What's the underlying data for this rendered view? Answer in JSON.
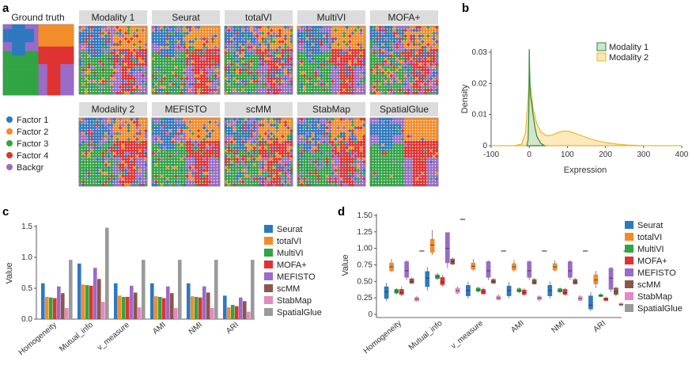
{
  "panel_labels": [
    "a",
    "b",
    "c",
    "d"
  ],
  "colors": {
    "factor1": "#2e78c0",
    "factor2": "#f28c28",
    "factor3": "#31a443",
    "factor4": "#e03232",
    "backgr": "#9a6bc8",
    "tile_header": "#dcdcdc",
    "modality1_fill": "#cfe3cf",
    "modality1_edge": "#2e8b3c",
    "modality2_fill": "#fbe6b0",
    "modality2_edge": "#e6b830"
  },
  "spatial_maps": {
    "ground_truth_title": "Ground truth",
    "legend": [
      "Factor 1",
      "Factor 2",
      "Factor 3",
      "Factor 4",
      "Backgr"
    ],
    "row1": [
      "Modality 1",
      "Seurat",
      "totalVI",
      "MultiVI",
      "MOFA+"
    ],
    "row2": [
      "Modality 2",
      "MEFISTO",
      "scMM",
      "StabMap",
      "SpatialGlue"
    ]
  },
  "chart_data": [
    {
      "id": "b",
      "type": "area",
      "xlabel": "Expression",
      "ylabel": "Density",
      "xlim": [
        -100,
        400
      ],
      "ylim": [
        0,
        0.03
      ],
      "xticks": [
        -100,
        0,
        100,
        200,
        300,
        400
      ],
      "yticks": [
        0,
        0.01,
        0.02,
        0.03
      ],
      "legend": [
        "Modality 1",
        "Modality 2"
      ],
      "series": [
        {
          "name": "Modality 1",
          "x": [
            -6,
            -3,
            -1,
            0,
            1,
            3,
            6,
            10,
            15,
            20,
            30,
            40
          ],
          "y": [
            0,
            0.002,
            0.012,
            0.031,
            0.024,
            0.016,
            0.014,
            0.01,
            0.006,
            0.003,
            0.0008,
            0
          ]
        },
        {
          "name": "Modality 2",
          "x": [
            -100,
            -40,
            -20,
            -10,
            -5,
            0,
            5,
            10,
            20,
            30,
            45,
            60,
            75,
            90,
            105,
            120,
            140,
            160,
            180,
            200,
            230,
            260,
            300,
            350,
            400
          ],
          "y": [
            0,
            0,
            0.0005,
            0.004,
            0.012,
            0.0205,
            0.018,
            0.012,
            0.007,
            0.0045,
            0.0032,
            0.0034,
            0.0042,
            0.0047,
            0.0046,
            0.004,
            0.0031,
            0.0022,
            0.0015,
            0.001,
            0.0005,
            0.0002,
            5e-05,
            0,
            0
          ]
        }
      ]
    },
    {
      "id": "c",
      "type": "bar",
      "ylabel": "Value",
      "ylim": [
        0,
        1.5
      ],
      "yticks": [
        0,
        0.5,
        1.0,
        1.5
      ],
      "categories": [
        "Homogeneity",
        "Mutual_info",
        "v_measure",
        "AMI",
        "NMI",
        "ARI"
      ],
      "series": [
        {
          "name": "Seurat",
          "values": [
            0.58,
            0.9,
            0.58,
            0.58,
            0.58,
            0.38
          ]
        },
        {
          "name": "totalVI",
          "values": [
            0.36,
            0.56,
            0.38,
            0.37,
            0.37,
            0.19
          ]
        },
        {
          "name": "MultiVI",
          "values": [
            0.35,
            0.55,
            0.36,
            0.36,
            0.36,
            0.23
          ]
        },
        {
          "name": "MOFA+",
          "values": [
            0.34,
            0.54,
            0.36,
            0.34,
            0.35,
            0.21
          ]
        },
        {
          "name": "MEFISTO",
          "values": [
            0.53,
            0.83,
            0.54,
            0.53,
            0.53,
            0.35
          ]
        },
        {
          "name": "scMM",
          "values": [
            0.42,
            0.65,
            0.43,
            0.42,
            0.43,
            0.29
          ]
        },
        {
          "name": "StabMap",
          "values": [
            0.18,
            0.28,
            0.19,
            0.18,
            0.18,
            0.12
          ]
        },
        {
          "name": "SpatialGlue",
          "values": [
            0.96,
            1.48,
            0.96,
            0.96,
            0.96,
            0.96
          ]
        }
      ]
    },
    {
      "id": "d",
      "type": "box",
      "ylabel": "Value",
      "ylim": [
        0,
        1.5
      ],
      "yticks": [
        "0",
        "0.25",
        "0.50",
        "0.75",
        "1.00",
        "1.25",
        "1.50"
      ],
      "categories": [
        "Homogeneity",
        "Mutual_info",
        "v_measure",
        "AMI",
        "NMI",
        "ARI"
      ],
      "series": [
        {
          "name": "Seurat",
          "boxes": [
            [
              0.2,
              0.24,
              0.34,
              0.42,
              0.48
            ],
            [
              0.36,
              0.42,
              0.55,
              0.65,
              0.72
            ],
            [
              0.24,
              0.28,
              0.36,
              0.44,
              0.5
            ],
            [
              0.24,
              0.28,
              0.36,
              0.43,
              0.49
            ],
            [
              0.24,
              0.28,
              0.36,
              0.44,
              0.5
            ],
            [
              0.05,
              0.08,
              0.14,
              0.28,
              0.34
            ]
          ]
        },
        {
          "name": "totalVI",
          "boxes": [
            [
              0.64,
              0.66,
              0.72,
              0.78,
              0.84
            ],
            [
              0.9,
              0.94,
              1.05,
              1.14,
              1.28
            ],
            [
              0.66,
              0.68,
              0.73,
              0.78,
              0.84
            ],
            [
              0.65,
              0.67,
              0.72,
              0.77,
              0.82
            ],
            [
              0.65,
              0.67,
              0.72,
              0.77,
              0.82
            ],
            [
              0.4,
              0.46,
              0.52,
              0.6,
              0.66
            ]
          ]
        },
        {
          "name": "MultiVI",
          "boxes": [
            [
              0.3,
              0.32,
              0.35,
              0.38,
              0.4
            ],
            [
              0.52,
              0.54,
              0.57,
              0.6,
              0.63
            ],
            [
              0.33,
              0.35,
              0.37,
              0.4,
              0.42
            ],
            [
              0.32,
              0.34,
              0.36,
              0.39,
              0.41
            ],
            [
              0.32,
              0.34,
              0.36,
              0.39,
              0.41
            ],
            [
              0.26,
              0.27,
              0.28,
              0.3,
              0.32
            ]
          ]
        },
        {
          "name": "MOFA+",
          "boxes": [
            [
              0.28,
              0.3,
              0.33,
              0.38,
              0.42
            ],
            [
              0.42,
              0.45,
              0.49,
              0.56,
              0.6
            ],
            [
              0.3,
              0.31,
              0.34,
              0.38,
              0.41
            ],
            [
              0.28,
              0.3,
              0.33,
              0.37,
              0.4
            ],
            [
              0.29,
              0.3,
              0.33,
              0.38,
              0.4
            ],
            [
              0.2,
              0.21,
              0.23,
              0.25,
              0.27
            ]
          ]
        },
        {
          "name": "MEFISTO",
          "boxes": [
            [
              0.52,
              0.56,
              0.66,
              0.8,
              0.82
            ],
            [
              0.7,
              0.78,
              1.0,
              1.24,
              1.24
            ],
            [
              0.52,
              0.56,
              0.66,
              0.8,
              0.82
            ],
            [
              0.52,
              0.56,
              0.66,
              0.8,
              0.82
            ],
            [
              0.52,
              0.56,
              0.66,
              0.8,
              0.82
            ],
            [
              0.34,
              0.38,
              0.55,
              0.7,
              0.72
            ]
          ]
        },
        {
          "name": "scMM",
          "boxes": [
            [
              0.46,
              0.47,
              0.5,
              0.54,
              0.56
            ],
            [
              0.75,
              0.76,
              0.8,
              0.84,
              0.86
            ],
            [
              0.46,
              0.47,
              0.5,
              0.53,
              0.55
            ],
            [
              0.45,
              0.46,
              0.49,
              0.53,
              0.55
            ],
            [
              0.45,
              0.46,
              0.49,
              0.53,
              0.55
            ],
            [
              0.27,
              0.3,
              0.34,
              0.4,
              0.42
            ]
          ]
        },
        {
          "name": "StabMap",
          "boxes": [
            [
              0.19,
              0.2,
              0.23,
              0.26,
              0.28
            ],
            [
              0.3,
              0.32,
              0.36,
              0.4,
              0.42
            ],
            [
              0.21,
              0.22,
              0.25,
              0.28,
              0.3
            ],
            [
              0.2,
              0.22,
              0.25,
              0.27,
              0.29
            ],
            [
              0.2,
              0.21,
              0.24,
              0.27,
              0.29
            ],
            [
              0.12,
              0.13,
              0.15,
              0.17,
              0.18
            ]
          ]
        },
        {
          "name": "SpatialGlue",
          "boxes": [
            [
              0.96,
              0.96,
              0.96,
              0.96,
              0.96
            ],
            [
              1.44,
              1.44,
              1.44,
              1.44,
              1.44
            ],
            [
              0.96,
              0.96,
              0.96,
              0.96,
              0.96
            ],
            [
              0.96,
              0.96,
              0.96,
              0.96,
              0.96
            ],
            [
              0.96,
              0.96,
              0.96,
              0.96,
              0.96
            ],
            [
              0.96,
              0.96,
              0.96,
              0.96,
              0.96
            ]
          ]
        }
      ]
    }
  ],
  "method_colors": [
    "#2e78c0",
    "#f28c28",
    "#31a443",
    "#e03232",
    "#9a6bc8",
    "#8c564b",
    "#e589c2",
    "#9a9a9a"
  ]
}
